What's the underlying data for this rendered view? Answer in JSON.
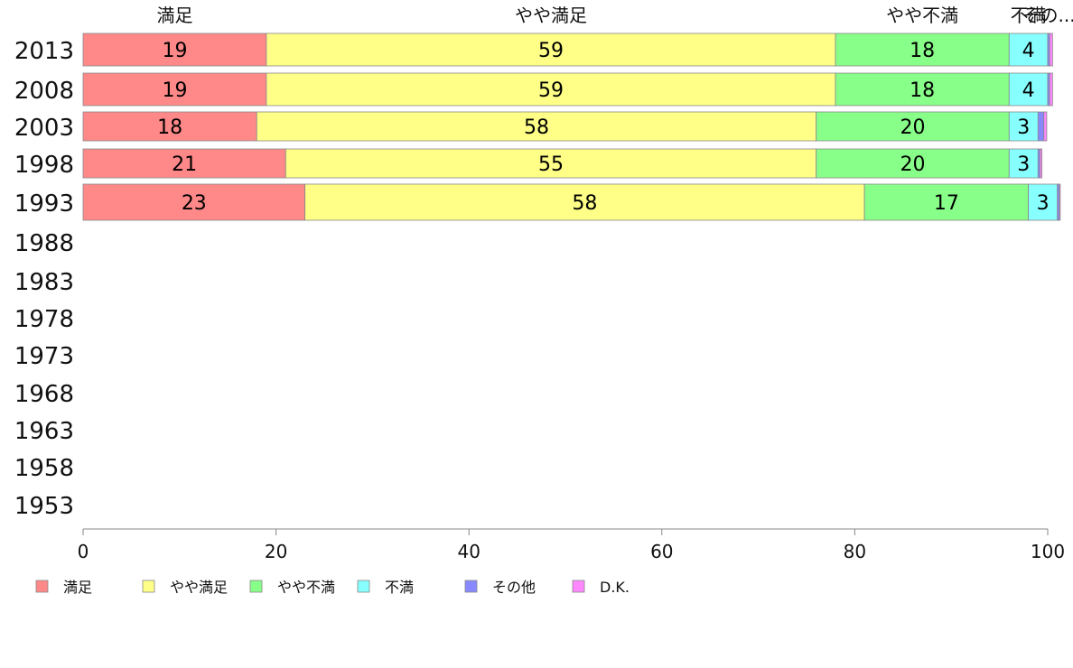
{
  "chart_data": {
    "type": "bar",
    "orientation": "horizontal",
    "stacked": true,
    "categories": [
      "2013",
      "2008",
      "2003",
      "1998",
      "1993",
      "1988",
      "1983",
      "1978",
      "1973",
      "1968",
      "1963",
      "1958",
      "1953"
    ],
    "series": [
      {
        "name": "満足",
        "color": "#ff8888",
        "values": [
          19,
          19,
          18,
          21,
          23,
          null,
          null,
          null,
          null,
          null,
          null,
          null,
          null
        ]
      },
      {
        "name": "やや満足",
        "color": "#ffff88",
        "values": [
          59,
          59,
          58,
          55,
          58,
          null,
          null,
          null,
          null,
          null,
          null,
          null,
          null
        ]
      },
      {
        "name": "やや不満",
        "color": "#88ff88",
        "values": [
          18,
          18,
          20,
          20,
          17,
          null,
          null,
          null,
          null,
          null,
          null,
          null,
          null
        ]
      },
      {
        "name": "不満",
        "color": "#88ffff",
        "values": [
          4,
          4,
          3,
          3,
          3,
          null,
          null,
          null,
          null,
          null,
          null,
          null,
          null
        ]
      },
      {
        "name": "その他",
        "color": "#8888ff",
        "values": [
          0.2,
          0.2,
          0.6,
          0.2,
          0.2,
          null,
          null,
          null,
          null,
          null,
          null,
          null,
          null
        ]
      },
      {
        "name": "D.K.",
        "color": "#ff88ff",
        "values": [
          0.3,
          0.3,
          0.3,
          0.2,
          0.1,
          null,
          null,
          null,
          null,
          null,
          null,
          null,
          null
        ]
      }
    ],
    "top_labels": [
      "満足",
      "やや満足",
      "やや不満",
      "不満",
      "その..."
    ],
    "xlim": [
      0,
      100
    ],
    "xticks": [
      0,
      20,
      40,
      60,
      80,
      100
    ],
    "grid": false,
    "legend_position": "bottom-left"
  }
}
